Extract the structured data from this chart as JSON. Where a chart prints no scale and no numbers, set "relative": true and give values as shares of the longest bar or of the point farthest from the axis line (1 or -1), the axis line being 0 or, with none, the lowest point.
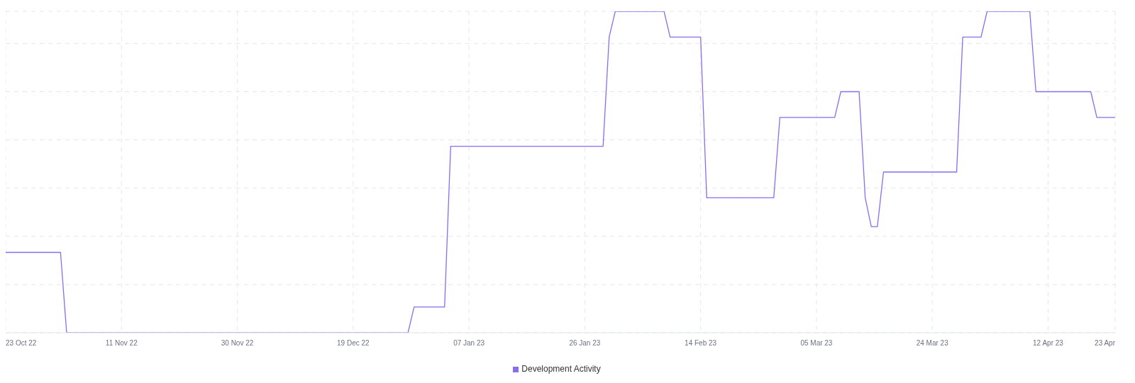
{
  "chart_data": {
    "type": "line",
    "relative": true,
    "grid": true,
    "legend": "bottom",
    "marker": "none",
    "line_style": "solid",
    "x": [
      "2022-10-23",
      "2022-11-01",
      "2022-11-02",
      "2022-12-28",
      "2022-12-29",
      "2023-01-03",
      "2023-01-04",
      "2023-01-29",
      "2023-01-30",
      "2023-01-31",
      "2023-02-08",
      "2023-02-09",
      "2023-02-14",
      "2023-02-15",
      "2023-02-26",
      "2023-02-27",
      "2023-03-08",
      "2023-03-09",
      "2023-03-12",
      "2023-03-13",
      "2023-03-14",
      "2023-03-15",
      "2023-03-16",
      "2023-03-28",
      "2023-03-29",
      "2023-04-01",
      "2023-04-02",
      "2023-04-09",
      "2023-04-10",
      "2023-04-19",
      "2023-04-20",
      "2023-04-23"
    ],
    "series": [
      {
        "name": "Development Activity",
        "color": "#8a6cf0",
        "values": [
          0.25,
          0.25,
          0,
          0,
          0.08,
          0.08,
          0.58,
          0.58,
          0.92,
          1,
          1,
          0.92,
          0.92,
          0.42,
          0.42,
          0.67,
          0.67,
          0.75,
          0.75,
          0.42,
          0.33,
          0.33,
          0.5,
          0.5,
          0.92,
          0.92,
          1,
          1,
          0.75,
          0.75,
          0.67,
          0.67
        ]
      }
    ],
    "xlim": [
      "2022-10-23",
      "2023-04-23"
    ],
    "xticks": [
      {
        "value": "2022-10-23",
        "label": "23 Oct 22"
      },
      {
        "value": "2022-11-11",
        "label": "11 Nov 22"
      },
      {
        "value": "2022-11-30",
        "label": "30 Nov 22"
      },
      {
        "value": "2022-12-19",
        "label": "19 Dec 22"
      },
      {
        "value": "2023-01-07",
        "label": "07 Jan 23"
      },
      {
        "value": "2023-01-26",
        "label": "26 Jan 23"
      },
      {
        "value": "2023-02-14",
        "label": "14 Feb 23"
      },
      {
        "value": "2023-03-05",
        "label": "05 Mar 23"
      },
      {
        "value": "2023-03-24",
        "label": "24 Mar 23"
      },
      {
        "value": "2023-04-12",
        "label": "12 Apr 23"
      },
      {
        "value": "2023-04-23",
        "label": "23 Apr"
      }
    ]
  }
}
